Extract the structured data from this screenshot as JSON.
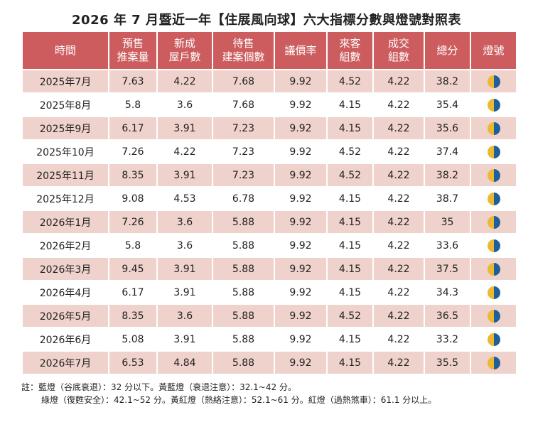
{
  "title": "2026 年 7 月暨近一年【住展風向球】六大指標分數與燈號對照表",
  "colors": {
    "header": "#cc5c5e",
    "row_shade": "#efd2cc",
    "lamp_yellow": "#ecb833",
    "lamp_blue": "#1f5f9a"
  },
  "headers": {
    "period": "時間",
    "presale_1": "預售",
    "presale_2": "推案量",
    "newhome_1": "新成",
    "newhome_2": "屋戶數",
    "pending_1": "待售",
    "pending_2": "建案個數",
    "bargain": "議價率",
    "visitors_1": "來客",
    "visitors_2": "組數",
    "deals_1": "成交",
    "deals_2": "組數",
    "total": "總分",
    "lamp": "燈號"
  },
  "rows": [
    {
      "period": "2025年7月",
      "presale": "7.63",
      "newhome": "4.22",
      "pending": "7.68",
      "bargain": "9.92",
      "visitors": "4.52",
      "deals": "4.22",
      "total": "38.2",
      "lamp": "yellow-blue-icon"
    },
    {
      "period": "2025年8月",
      "presale": "5.8",
      "newhome": "3.6",
      "pending": "7.68",
      "bargain": "9.92",
      "visitors": "4.15",
      "deals": "4.22",
      "total": "35.4",
      "lamp": "yellow-blue-icon"
    },
    {
      "period": "2025年9月",
      "presale": "6.17",
      "newhome": "3.91",
      "pending": "7.23",
      "bargain": "9.92",
      "visitors": "4.15",
      "deals": "4.22",
      "total": "35.6",
      "lamp": "yellow-blue-icon"
    },
    {
      "period": "2025年10月",
      "presale": "7.26",
      "newhome": "4.22",
      "pending": "7.23",
      "bargain": "9.92",
      "visitors": "4.52",
      "deals": "4.22",
      "total": "37.4",
      "lamp": "yellow-blue-icon"
    },
    {
      "period": "2025年11月",
      "presale": "8.35",
      "newhome": "3.91",
      "pending": "7.23",
      "bargain": "9.92",
      "visitors": "4.52",
      "deals": "4.22",
      "total": "38.2",
      "lamp": "yellow-blue-icon"
    },
    {
      "period": "2025年12月",
      "presale": "9.08",
      "newhome": "4.53",
      "pending": "6.78",
      "bargain": "9.92",
      "visitors": "4.15",
      "deals": "4.22",
      "total": "38.7",
      "lamp": "yellow-blue-icon"
    },
    {
      "period": "2026年1月",
      "presale": "7.26",
      "newhome": "3.6",
      "pending": "5.88",
      "bargain": "9.92",
      "visitors": "4.15",
      "deals": "4.22",
      "total": "35",
      "lamp": "yellow-blue-icon"
    },
    {
      "period": "2026年2月",
      "presale": "5.8",
      "newhome": "3.6",
      "pending": "5.88",
      "bargain": "9.92",
      "visitors": "4.15",
      "deals": "4.22",
      "total": "33.6",
      "lamp": "yellow-blue-icon"
    },
    {
      "period": "2026年3月",
      "presale": "9.45",
      "newhome": "3.91",
      "pending": "5.88",
      "bargain": "9.92",
      "visitors": "4.15",
      "deals": "4.22",
      "total": "37.5",
      "lamp": "yellow-blue-icon"
    },
    {
      "period": "2026年4月",
      "presale": "6.17",
      "newhome": "3.91",
      "pending": "5.88",
      "bargain": "9.92",
      "visitors": "4.15",
      "deals": "4.22",
      "total": "34.3",
      "lamp": "yellow-blue-icon"
    },
    {
      "period": "2026年5月",
      "presale": "8.35",
      "newhome": "3.6",
      "pending": "5.88",
      "bargain": "9.92",
      "visitors": "4.52",
      "deals": "4.22",
      "total": "36.5",
      "lamp": "yellow-blue-icon"
    },
    {
      "period": "2026年6月",
      "presale": "5.08",
      "newhome": "3.91",
      "pending": "5.88",
      "bargain": "9.92",
      "visitors": "4.15",
      "deals": "4.22",
      "total": "33.2",
      "lamp": "yellow-blue-icon"
    },
    {
      "period": "2026年7月",
      "presale": "6.53",
      "newhome": "4.84",
      "pending": "5.88",
      "bargain": "9.92",
      "visitors": "4.15",
      "deals": "4.22",
      "total": "35.5",
      "lamp": "yellow-blue-icon"
    }
  ],
  "notes": {
    "line1": "註：藍燈（谷底衰退）：32 分以下。黃藍燈（衰退注意）：32.1~42 分。",
    "line2": "綠燈（復甦安全）：42.1~52 分。黃紅燈（熱絡注意）：52.1~61 分。紅燈（過熱煞車）：61.1 分以上。"
  }
}
